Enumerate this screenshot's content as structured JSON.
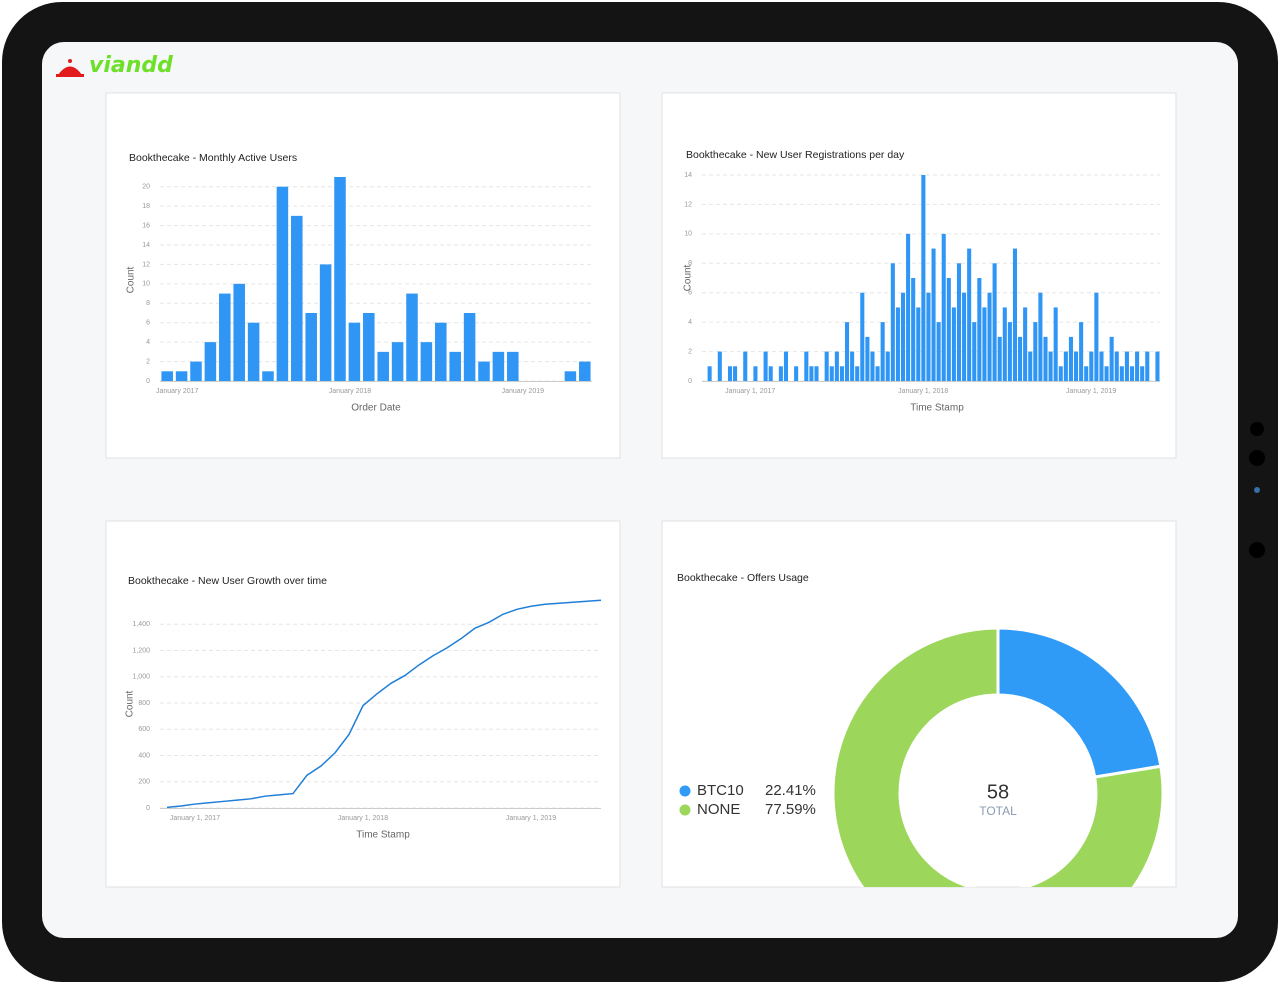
{
  "logo": "viandd",
  "chart_data": [
    {
      "type": "bar",
      "title": "Bookthecake - Monthly Active Users",
      "x_label": "Order Date",
      "y_label": "Count",
      "categories": [
        "January 2017",
        null,
        null,
        null,
        null,
        null,
        null,
        null,
        null,
        null,
        null,
        null,
        "January 2018",
        null,
        null,
        null,
        null,
        null,
        null,
        null,
        null,
        null,
        null,
        null,
        "January 2019",
        null,
        null,
        null,
        null,
        null
      ],
      "values": [
        1,
        1,
        2,
        4,
        9,
        10,
        6,
        1,
        20,
        17,
        7,
        12,
        21,
        6,
        7,
        3,
        4,
        9,
        4,
        6,
        3,
        7,
        2,
        3,
        3,
        0,
        0,
        0,
        1,
        2
      ],
      "color": "#2f96f5",
      "ylim": [
        0,
        21
      ],
      "yticks": [
        0,
        2,
        4,
        6,
        8,
        10,
        12,
        14,
        16,
        18,
        20
      ],
      "grid": true
    },
    {
      "type": "bar",
      "title": "Bookthecake - New User Registrations per day",
      "x_label": "Time Stamp",
      "y_label": "Count",
      "categories": [
        null,
        null,
        null,
        null,
        null,
        null,
        null,
        "January 1, 2017",
        null,
        null,
        null,
        null,
        null,
        null,
        null,
        null,
        null,
        null,
        null,
        null,
        null,
        null,
        null,
        null,
        null,
        null,
        null,
        null,
        null,
        null,
        null,
        null,
        null,
        null,
        null,
        null,
        null,
        null,
        null,
        null,
        null,
        "January 1, 2018",
        null,
        null,
        null,
        null,
        null,
        null,
        null,
        null,
        null,
        null,
        null,
        null,
        null,
        null,
        null,
        null,
        null,
        null,
        null,
        null,
        null,
        null,
        null,
        null,
        null,
        null,
        null,
        null,
        null,
        null,
        null,
        null,
        "January 1, 2019",
        null,
        null,
        null,
        null,
        null,
        null,
        null,
        null,
        null,
        null,
        null,
        null,
        null,
        null,
        null
      ],
      "values": [
        0,
        1,
        0,
        2,
        0,
        1,
        1,
        0,
        2,
        0,
        1,
        0,
        2,
        1,
        0,
        1,
        2,
        0,
        1,
        0,
        2,
        1,
        1,
        0,
        2,
        1,
        2,
        1,
        4,
        2,
        1,
        6,
        3,
        2,
        1,
        4,
        2,
        8,
        5,
        6,
        10,
        7,
        5,
        14,
        6,
        9,
        4,
        10,
        7,
        5,
        8,
        6,
        9,
        4,
        7,
        5,
        6,
        8,
        3,
        5,
        4,
        9,
        3,
        5,
        2,
        4,
        6,
        3,
        2,
        5,
        1,
        2,
        3,
        2,
        4,
        1,
        2,
        6,
        2,
        1,
        3,
        2,
        1,
        2,
        1,
        2,
        1,
        2,
        0,
        2
      ],
      "color": "#2f96f5",
      "ylim": [
        0,
        14
      ],
      "yticks": [
        0,
        2,
        4,
        6,
        8,
        10,
        12,
        14
      ],
      "grid": true
    },
    {
      "type": "line",
      "title": "Bookthecake - New User Growth over time",
      "x_label": "Time Stamp",
      "y_label": "Count",
      "categories": [
        null,
        null,
        "January 1, 2017",
        null,
        null,
        null,
        null,
        null,
        null,
        null,
        null,
        null,
        null,
        null,
        "January 1, 2018",
        null,
        null,
        null,
        null,
        null,
        null,
        null,
        null,
        null,
        null,
        null,
        "January 1, 2019",
        null,
        null,
        null,
        null,
        null
      ],
      "values": [
        5,
        15,
        30,
        40,
        50,
        60,
        70,
        90,
        100,
        110,
        250,
        320,
        420,
        560,
        780,
        870,
        950,
        1010,
        1090,
        1160,
        1220,
        1290,
        1370,
        1415,
        1476,
        1514,
        1537,
        1552,
        1560,
        1568,
        1575,
        1583
      ],
      "color": "#1f7fd8",
      "ylim": [
        0,
        1600
      ],
      "yticks": [
        0,
        200,
        400,
        600,
        800,
        {
          "value": 1000,
          "label": "1,000"
        },
        {
          "value": 1200,
          "label": "1,200"
        },
        {
          "value": 1400,
          "label": "1,400"
        }
      ],
      "grid": true
    },
    {
      "type": "pie",
      "title": "Bookthecake - Offers Usage",
      "categories": [
        "BTC10",
        "NONE"
      ],
      "values": [
        22.41,
        77.59
      ],
      "value_labels": [
        "22.41%",
        "77.59%"
      ],
      "colors": [
        "#2f9bf7",
        "#9cd65b"
      ],
      "total": 58,
      "total_label": "TOTAL"
    }
  ]
}
